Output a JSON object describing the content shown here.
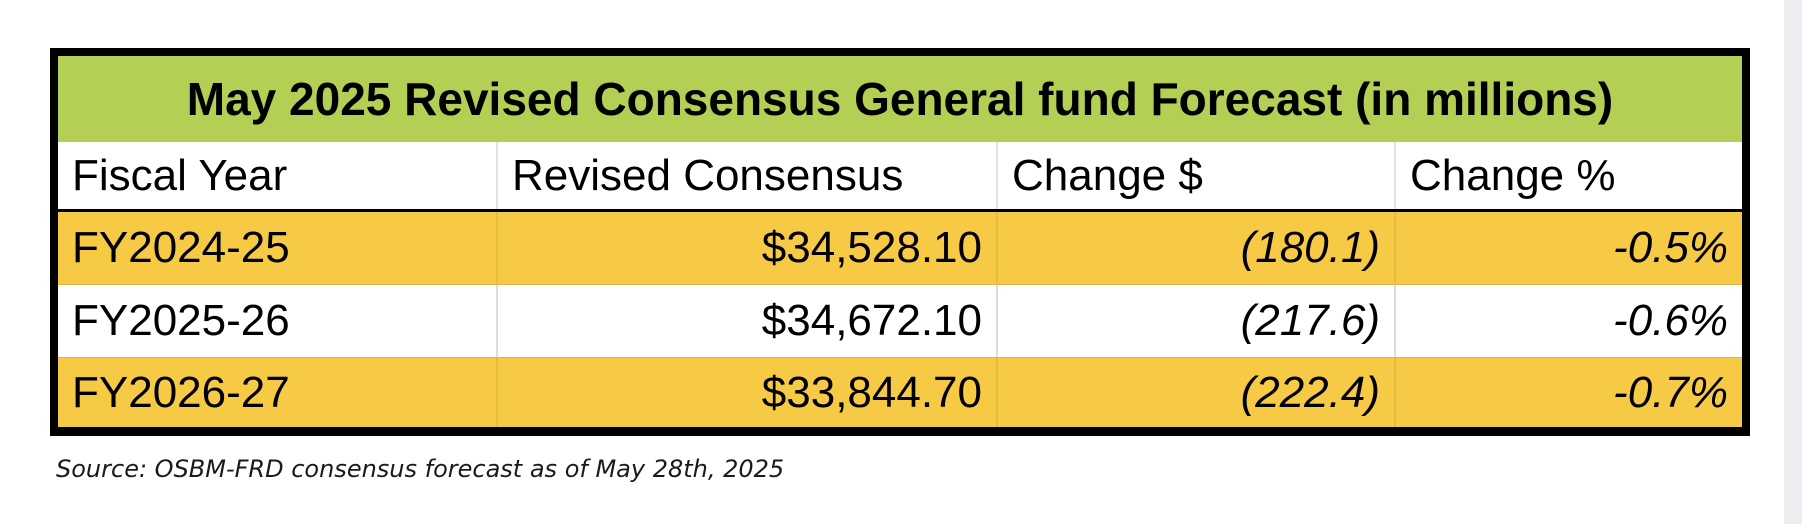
{
  "table": {
    "title": "May 2025 Revised Consensus General fund Forecast (in millions)",
    "headers": [
      "Fiscal Year",
      "Revised Consensus",
      "Change $",
      "Change %"
    ],
    "rows": [
      [
        "FY2024-25",
        "$34,528.10",
        "(180.1)",
        "-0.5%"
      ],
      [
        "FY2025-26",
        "$34,672.10",
        "(217.6)",
        "-0.6%"
      ],
      [
        "FY2026-27",
        "$33,844.70",
        "(222.4)",
        "-0.7%"
      ]
    ]
  },
  "source": "Source: OSBM-FRD consensus forecast as of May 28th, 2025",
  "colors": {
    "title_bg": "#b3d055",
    "highlight_row_bg": "#f6ca45",
    "border": "#000000"
  }
}
